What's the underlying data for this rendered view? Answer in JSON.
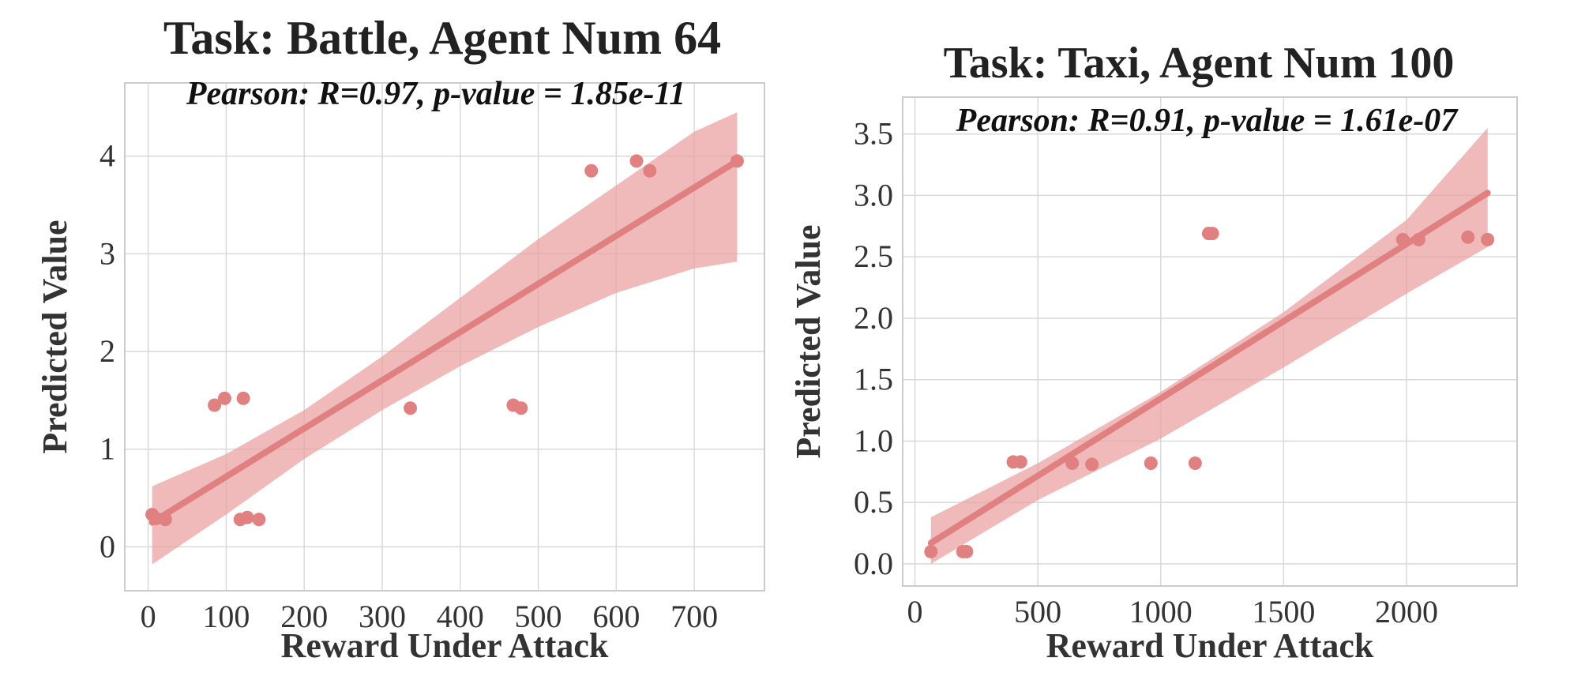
{
  "chart_data": [
    {
      "type": "scatter",
      "title": "Task: Battle, Agent Num 64",
      "annotation": "Pearson: R=0.97, p-value = 1.85e-11",
      "xlabel": "Reward Under Attack",
      "ylabel": "Predicted Value",
      "xlim": [
        -30,
        790
      ],
      "ylim": [
        -0.45,
        4.75
      ],
      "xticks": [
        0,
        100,
        200,
        300,
        400,
        500,
        600,
        700
      ],
      "yticks": [
        0,
        1,
        2,
        3,
        4
      ],
      "grid": true,
      "color": "#e08080",
      "band_color": "#eaa0a0",
      "points": [
        {
          "x": 5,
          "y": 0.33
        },
        {
          "x": 10,
          "y": 0.29
        },
        {
          "x": 22,
          "y": 0.28
        },
        {
          "x": 85,
          "y": 1.45
        },
        {
          "x": 98,
          "y": 1.52
        },
        {
          "x": 122,
          "y": 1.52
        },
        {
          "x": 118,
          "y": 0.28
        },
        {
          "x": 127,
          "y": 0.3
        },
        {
          "x": 142,
          "y": 0.28
        },
        {
          "x": 336,
          "y": 1.42
        },
        {
          "x": 468,
          "y": 1.45
        },
        {
          "x": 478,
          "y": 1.42
        },
        {
          "x": 568,
          "y": 3.85
        },
        {
          "x": 626,
          "y": 3.95
        },
        {
          "x": 643,
          "y": 3.85
        },
        {
          "x": 755,
          "y": 3.95
        }
      ],
      "fit": {
        "x": [
          5,
          755
        ],
        "y": [
          0.25,
          3.95
        ]
      },
      "band": {
        "x": [
          5,
          100,
          200,
          300,
          400,
          500,
          600,
          700,
          755
        ],
        "lower": [
          -0.18,
          0.33,
          0.9,
          1.4,
          1.85,
          2.25,
          2.6,
          2.85,
          2.92
        ],
        "upper": [
          0.62,
          0.95,
          1.4,
          1.95,
          2.55,
          3.15,
          3.7,
          4.25,
          4.45
        ]
      }
    },
    {
      "type": "scatter",
      "title": "Task: Taxi, Agent Num 100",
      "annotation": "Pearson: R=0.91, p-value = 1.61e-07",
      "xlabel": "Reward Under Attack",
      "ylabel": "Predicted Value",
      "xlim": [
        -50,
        2450
      ],
      "ylim": [
        -0.18,
        3.8
      ],
      "xticks": [
        0,
        500,
        1000,
        1500,
        2000
      ],
      "yticks": [
        0.0,
        0.5,
        1.0,
        1.5,
        2.0,
        2.5,
        3.0,
        3.5
      ],
      "ytick_labels": [
        "0.0",
        "0.5",
        "1.0",
        "1.5",
        "2.0",
        "2.5",
        "3.0",
        "3.5"
      ],
      "grid": true,
      "color": "#e08080",
      "band_color": "#eaa0a0",
      "points": [
        {
          "x": 65,
          "y": 0.1
        },
        {
          "x": 195,
          "y": 0.1
        },
        {
          "x": 210,
          "y": 0.1
        },
        {
          "x": 400,
          "y": 0.83
        },
        {
          "x": 430,
          "y": 0.83
        },
        {
          "x": 640,
          "y": 0.82
        },
        {
          "x": 720,
          "y": 0.81
        },
        {
          "x": 960,
          "y": 0.82
        },
        {
          "x": 1140,
          "y": 0.82
        },
        {
          "x": 1195,
          "y": 2.69
        },
        {
          "x": 1210,
          "y": 2.69
        },
        {
          "x": 1985,
          "y": 2.64
        },
        {
          "x": 2050,
          "y": 2.64
        },
        {
          "x": 2250,
          "y": 2.66
        },
        {
          "x": 2330,
          "y": 2.64
        }
      ],
      "fit": {
        "x": [
          65,
          2330
        ],
        "y": [
          0.17,
          3.02
        ]
      },
      "band": {
        "x": [
          65,
          500,
          1000,
          1500,
          2000,
          2330
        ],
        "lower": [
          0.0,
          0.52,
          1.02,
          1.6,
          2.2,
          2.58
        ],
        "upper": [
          0.38,
          0.82,
          1.4,
          2.05,
          2.8,
          3.55
        ]
      }
    }
  ]
}
